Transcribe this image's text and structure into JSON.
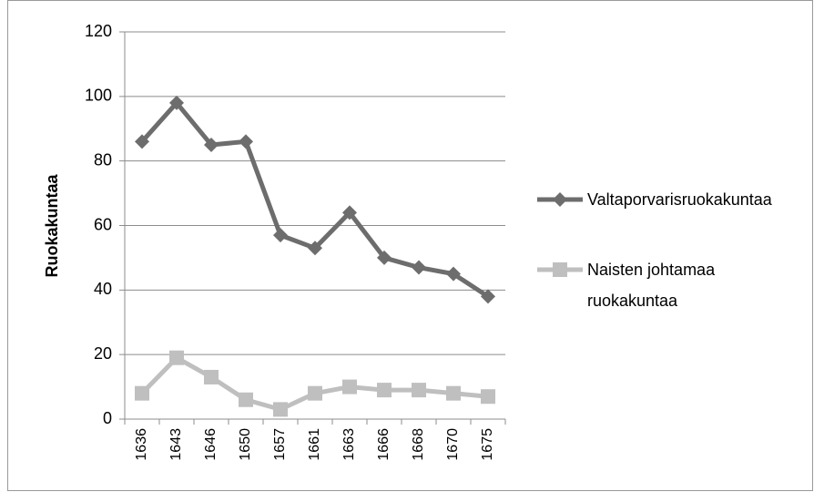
{
  "chart_data": {
    "type": "line",
    "y_label": "Ruokakuntaa",
    "categories": [
      "1636",
      "1643",
      "1646",
      "1650",
      "1657",
      "1661",
      "1663",
      "1666",
      "1668",
      "1670",
      "1675"
    ],
    "series": [
      {
        "name": "Valtaporvarisruokakuntaa",
        "color": "#6d6d6d",
        "marker": "diamond",
        "values": [
          86,
          98,
          85,
          86,
          57,
          53,
          64,
          50,
          47,
          45,
          38
        ]
      },
      {
        "name": "Naisten johtamaa ruokakuntaa",
        "color": "#bfbfbf",
        "marker": "square",
        "values": [
          8,
          19,
          13,
          6,
          3,
          8,
          10,
          9,
          9,
          8,
          7
        ]
      }
    ],
    "ylim": [
      0,
      120
    ],
    "yticks": [
      0,
      20,
      40,
      60,
      80,
      100,
      120
    ],
    "grid": true,
    "legend": "right"
  }
}
